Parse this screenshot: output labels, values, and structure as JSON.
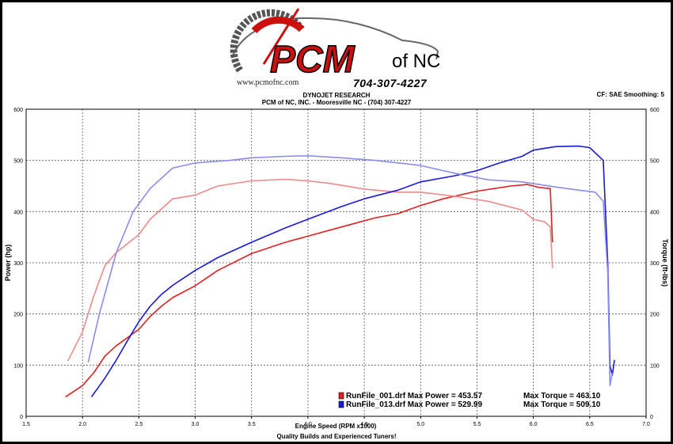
{
  "header": {
    "logo": {
      "brand": "PCM",
      "suffix": "of NC",
      "website": "www.pcmofnc.com",
      "phone": "704-307-4227"
    },
    "correction": "CF: SAE  Smoothing: 5",
    "subtitle_1": "DYNOJET RESEARCH",
    "subtitle_2": "PCM of NC, INC. - Mooresville NC - (704) 307-4227"
  },
  "footer": {
    "tagline": "Quality Builds and Experienced Tuners!"
  },
  "chart_data": {
    "type": "line",
    "xlabel": "Engine Speed (RPM x1000)",
    "ylabel_left": "Power (hp)",
    "ylabel_right": "Torque (ft-lbs)",
    "xlim": [
      1.5,
      7.0
    ],
    "ylim": [
      0,
      600
    ],
    "x_ticks": [
      "1.5",
      "2.0",
      "2.5",
      "3.0",
      "3.5",
      "4.0",
      "4.5",
      "5.0",
      "5.5",
      "6.0",
      "6.5",
      "7.0"
    ],
    "y_ticks": [
      "0",
      "100",
      "200",
      "300",
      "400",
      "500",
      "600"
    ],
    "grid": true,
    "colors": {
      "run_001_power": "#e02020",
      "run_001_torque": "#f08a8a",
      "run_013_power": "#1a1adc",
      "run_013_torque": "#8c8cf0"
    },
    "legend": [
      {
        "text": "RunFile_001.drf Max Power = 453.57",
        "torque_text": "Max Torque = 463.10",
        "color": "#e02020"
      },
      {
        "text": "RunFile_013.drf Max Power = 529.99",
        "torque_text": "Max Torque = 509.10",
        "color": "#1a1adc"
      }
    ],
    "series": [
      {
        "key": "run_001_power",
        "x": [
          1.85,
          2.0,
          2.1,
          2.2,
          2.3,
          2.5,
          2.6,
          2.7,
          2.8,
          3.0,
          3.2,
          3.5,
          3.8,
          4.0,
          4.3,
          4.6,
          4.8,
          5.0,
          5.2,
          5.5,
          5.8,
          5.95,
          6.05,
          6.15,
          6.17
        ],
        "y": [
          38,
          60,
          85,
          118,
          138,
          170,
          195,
          215,
          232,
          255,
          285,
          318,
          340,
          352,
          370,
          388,
          396,
          412,
          425,
          440,
          450,
          453,
          447,
          445,
          340
        ]
      },
      {
        "key": "run_001_torque",
        "x": [
          1.87,
          2.0,
          2.1,
          2.2,
          2.3,
          2.5,
          2.6,
          2.7,
          2.8,
          3.0,
          3.2,
          3.5,
          3.8,
          4.0,
          4.2,
          4.5,
          4.8,
          5.0,
          5.3,
          5.6,
          5.9,
          6.0,
          6.1,
          6.15,
          6.17
        ],
        "y": [
          108,
          165,
          235,
          295,
          320,
          355,
          385,
          405,
          425,
          432,
          450,
          460,
          463,
          460,
          455,
          444,
          438,
          438,
          430,
          420,
          403,
          385,
          380,
          370,
          290
        ]
      },
      {
        "key": "run_013_power",
        "x": [
          2.08,
          2.2,
          2.3,
          2.4,
          2.5,
          2.6,
          2.7,
          2.8,
          3.0,
          3.2,
          3.5,
          3.8,
          4.0,
          4.3,
          4.5,
          4.8,
          5.0,
          5.3,
          5.5,
          5.7,
          5.9,
          6.0,
          6.2,
          6.4,
          6.5,
          6.62,
          6.66,
          6.68,
          6.7,
          6.72
        ],
        "y": [
          38,
          75,
          110,
          148,
          185,
          215,
          238,
          256,
          285,
          310,
          340,
          368,
          385,
          410,
          425,
          442,
          458,
          470,
          480,
          495,
          508,
          520,
          527,
          528,
          525,
          500,
          300,
          100,
          80,
          110
        ]
      },
      {
        "key": "run_013_torque",
        "x": [
          2.05,
          2.15,
          2.3,
          2.45,
          2.6,
          2.7,
          2.8,
          3.0,
          3.3,
          3.5,
          3.8,
          4.0,
          4.3,
          4.6,
          5.0,
          5.3,
          5.6,
          5.9,
          6.2,
          6.4,
          6.55,
          6.62,
          6.66,
          6.68,
          6.7
        ],
        "y": [
          105,
          200,
          320,
          400,
          445,
          465,
          485,
          495,
          500,
          505,
          508,
          509,
          505,
          500,
          490,
          475,
          462,
          458,
          448,
          442,
          438,
          420,
          280,
          60,
          85
        ]
      }
    ]
  }
}
